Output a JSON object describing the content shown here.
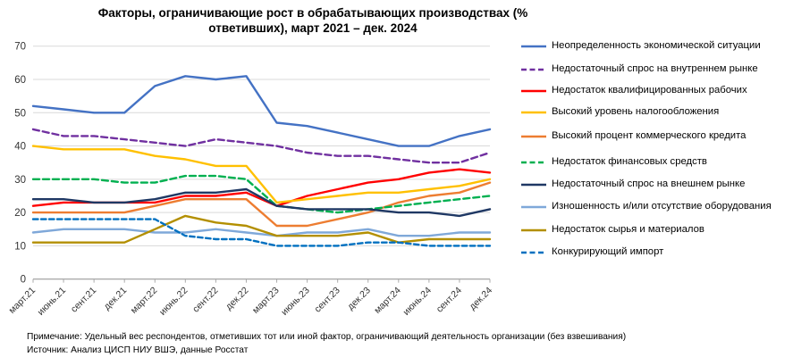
{
  "title": {
    "lines": [
      "Факторы, ограничивающие рост в обрабатывающих производствах (%",
      "ответивших), март 2021 – дек. 2024"
    ]
  },
  "chart_data": {
    "type": "line",
    "categories": [
      "март.21",
      "июнь.21",
      "сент.21",
      "дек.21",
      "март.22",
      "июнь.22",
      "сент.22",
      "дек.22",
      "март.23",
      "июнь.23",
      "сент.23",
      "дек.23",
      "март.24",
      "июнь.24",
      "сент.24",
      "дек.24"
    ],
    "y_ticks": [
      0,
      10,
      20,
      30,
      40,
      50,
      60,
      70
    ],
    "ylim": [
      0,
      70
    ],
    "grid": true,
    "legend_position": "right",
    "series": [
      {
        "name": "Неопределенность экономической ситуации",
        "color": "#4472C4",
        "dash": "",
        "values": [
          52,
          51,
          50,
          50,
          58,
          61,
          60,
          61,
          47,
          46,
          44,
          42,
          40,
          40,
          43,
          45
        ]
      },
      {
        "name": "Недостаточный спрос на внутреннем рынке",
        "color": "#7030A0",
        "dash": "7 4",
        "values": [
          45,
          43,
          43,
          42,
          41,
          40,
          42,
          41,
          40,
          38,
          37,
          37,
          36,
          35,
          35,
          38
        ]
      },
      {
        "name": "Недостаток квалифицированных рабочих",
        "color": "#FF0000",
        "dash": "",
        "values": [
          22,
          23,
          23,
          23,
          23,
          25,
          25,
          26,
          22,
          25,
          27,
          29,
          30,
          32,
          33,
          32
        ]
      },
      {
        "name": "Высокий уровень налогообложения",
        "color": "#FFC000",
        "dash": "",
        "values": [
          40,
          39,
          39,
          39,
          37,
          36,
          34,
          34,
          23,
          24,
          25,
          26,
          26,
          27,
          28,
          30
        ]
      },
      {
        "name": "Высокий процент коммерческого кредита",
        "color": "#ED7D31",
        "dash": "",
        "values": [
          20,
          20,
          20,
          20,
          22,
          24,
          24,
          24,
          16,
          16,
          18,
          20,
          23,
          25,
          26,
          29
        ]
      },
      {
        "name": "Недостаток финансовых средств",
        "color": "#00B050",
        "dash": "7 4",
        "values": [
          30,
          30,
          30,
          29,
          29,
          31,
          31,
          30,
          22,
          21,
          20,
          21,
          22,
          23,
          24,
          25
        ]
      },
      {
        "name": "Недостаточный спрос на внешнем рынке",
        "color": "#1F3864",
        "dash": "",
        "values": [
          24,
          24,
          23,
          23,
          24,
          26,
          26,
          27,
          22,
          21,
          21,
          21,
          20,
          20,
          19,
          21
        ]
      },
      {
        "name": "Изношенность и/или отсутствие оборудования",
        "color": "#7FA8D9",
        "dash": "",
        "values": [
          14,
          15,
          15,
          15,
          14,
          14,
          15,
          14,
          13,
          14,
          14,
          15,
          13,
          13,
          14,
          14
        ]
      },
      {
        "name": "Недостаток сырья и материалов",
        "color": "#B38F00",
        "dash": "",
        "values": [
          11,
          11,
          11,
          11,
          15,
          19,
          17,
          16,
          13,
          13,
          13,
          14,
          11,
          12,
          12,
          12
        ]
      },
      {
        "name": "Конкурирующий импорт",
        "color": "#0070C0",
        "dash": "5.5 3.5",
        "values": [
          18,
          18,
          18,
          18,
          18,
          13,
          12,
          12,
          10,
          10,
          10,
          11,
          11,
          10,
          10,
          10
        ]
      }
    ]
  },
  "notes": {
    "note": "Примечание: Удельный вес респондентов, отметивших тот или иной фактор, ограничивающий деятельность организации (без взвешивания)",
    "source": "Источник: Анализ ЦИСП НИУ ВШЭ, данные Росстат"
  }
}
